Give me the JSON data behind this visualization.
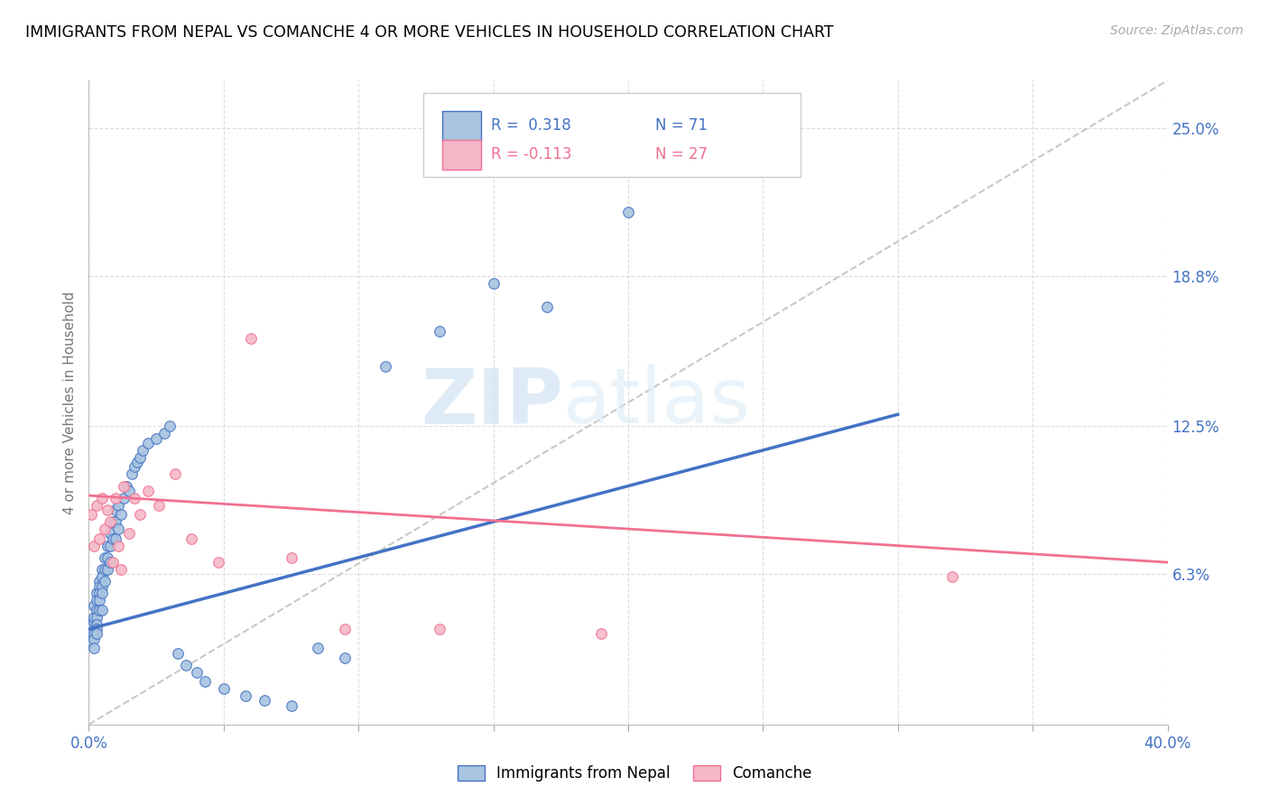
{
  "title": "IMMIGRANTS FROM NEPAL VS COMANCHE 4 OR MORE VEHICLES IN HOUSEHOLD CORRELATION CHART",
  "source": "Source: ZipAtlas.com",
  "ylabel": "4 or more Vehicles in Household",
  "xlim": [
    0.0,
    0.4
  ],
  "ylim": [
    0.0,
    0.27
  ],
  "xticks": [
    0.0,
    0.05,
    0.1,
    0.15,
    0.2,
    0.25,
    0.3,
    0.35,
    0.4
  ],
  "ytick_positions": [
    0.063,
    0.125,
    0.188,
    0.25
  ],
  "ytick_labels": [
    "6.3%",
    "12.5%",
    "18.8%",
    "25.0%"
  ],
  "color_nepal": "#a8c4e0",
  "color_comanche": "#f4b8c8",
  "color_nepal_line": "#4472c4",
  "color_comanche_line": "#f07090",
  "color_diag": "#c8c8c8",
  "watermark_zip": "ZIP",
  "watermark_atlas": "atlas",
  "nepal_x": [
    0.001,
    0.001,
    0.001,
    0.001,
    0.002,
    0.002,
    0.002,
    0.002,
    0.002,
    0.002,
    0.003,
    0.003,
    0.003,
    0.003,
    0.003,
    0.003,
    0.003,
    0.004,
    0.004,
    0.004,
    0.004,
    0.004,
    0.005,
    0.005,
    0.005,
    0.005,
    0.005,
    0.006,
    0.006,
    0.006,
    0.007,
    0.007,
    0.007,
    0.008,
    0.008,
    0.008,
    0.009,
    0.009,
    0.01,
    0.01,
    0.01,
    0.011,
    0.011,
    0.012,
    0.013,
    0.014,
    0.015,
    0.016,
    0.017,
    0.018,
    0.019,
    0.02,
    0.022,
    0.025,
    0.028,
    0.03,
    0.033,
    0.036,
    0.04,
    0.043,
    0.05,
    0.058,
    0.065,
    0.075,
    0.085,
    0.095,
    0.11,
    0.13,
    0.15,
    0.17,
    0.2
  ],
  "nepal_y": [
    0.04,
    0.042,
    0.038,
    0.035,
    0.05,
    0.043,
    0.045,
    0.038,
    0.036,
    0.032,
    0.055,
    0.052,
    0.048,
    0.045,
    0.042,
    0.04,
    0.038,
    0.06,
    0.058,
    0.055,
    0.052,
    0.048,
    0.065,
    0.062,
    0.058,
    0.055,
    0.048,
    0.07,
    0.065,
    0.06,
    0.075,
    0.07,
    0.065,
    0.08,
    0.075,
    0.068,
    0.085,
    0.078,
    0.09,
    0.085,
    0.078,
    0.092,
    0.082,
    0.088,
    0.095,
    0.1,
    0.098,
    0.105,
    0.108,
    0.11,
    0.112,
    0.115,
    0.118,
    0.12,
    0.122,
    0.125,
    0.03,
    0.025,
    0.022,
    0.018,
    0.015,
    0.012,
    0.01,
    0.008,
    0.032,
    0.028,
    0.15,
    0.165,
    0.185,
    0.175,
    0.215
  ],
  "comanche_x": [
    0.001,
    0.002,
    0.003,
    0.004,
    0.005,
    0.006,
    0.007,
    0.008,
    0.009,
    0.01,
    0.011,
    0.012,
    0.013,
    0.015,
    0.017,
    0.019,
    0.022,
    0.026,
    0.032,
    0.038,
    0.048,
    0.06,
    0.075,
    0.095,
    0.13,
    0.19,
    0.32
  ],
  "comanche_y": [
    0.088,
    0.075,
    0.092,
    0.078,
    0.095,
    0.082,
    0.09,
    0.085,
    0.068,
    0.095,
    0.075,
    0.065,
    0.1,
    0.08,
    0.095,
    0.088,
    0.098,
    0.092,
    0.105,
    0.078,
    0.068,
    0.162,
    0.07,
    0.04,
    0.04,
    0.038,
    0.062
  ],
  "nepal_line_x": [
    0.0,
    0.3
  ],
  "nepal_line_y": [
    0.04,
    0.13
  ],
  "comanche_line_x": [
    0.0,
    0.4
  ],
  "comanche_line_y": [
    0.096,
    0.068
  ],
  "diag_line_x": [
    0.0,
    0.4
  ],
  "diag_line_y": [
    0.0,
    0.27
  ]
}
